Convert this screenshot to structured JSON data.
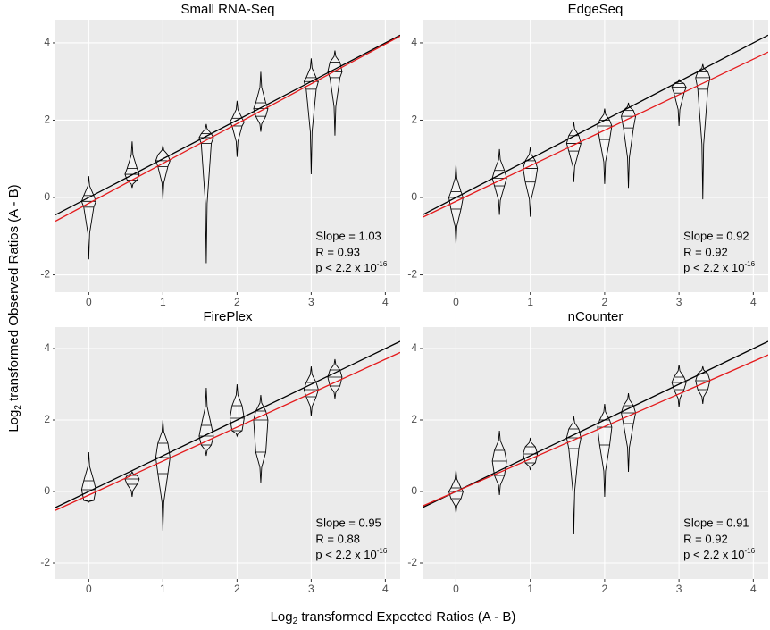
{
  "x_label": {
    "main": "Log",
    "sub": "2",
    "rest": " transformed Expected Ratios (A - B)"
  },
  "y_label": {
    "main": "Log",
    "sub": "2",
    "rest": " transformed Observed Ratios (A - B)"
  },
  "chart_data": [
    {
      "type": "violin",
      "title": "Small RNA-Seq",
      "xlim": [
        -0.45,
        4.2
      ],
      "ylim": [
        -2.45,
        4.6
      ],
      "xticks": [
        0,
        1,
        2,
        3,
        4
      ],
      "yticks": [
        -2,
        0,
        2,
        4
      ],
      "grid": true,
      "groups": [
        {
          "x": 0,
          "min": -1.6,
          "q1": -0.25,
          "median": -0.1,
          "q3": 0.05,
          "max": 0.55
        },
        {
          "x": 0.585,
          "min": 0.25,
          "q1": 0.45,
          "median": 0.6,
          "q3": 0.75,
          "max": 1.45
        },
        {
          "x": 1,
          "min": -0.05,
          "q1": 0.8,
          "median": 0.95,
          "q3": 1.1,
          "max": 1.35
        },
        {
          "x": 1.585,
          "min": -1.7,
          "q1": 1.4,
          "median": 1.55,
          "q3": 1.65,
          "max": 1.9
        },
        {
          "x": 2,
          "min": 1.05,
          "q1": 1.85,
          "median": 1.95,
          "q3": 2.05,
          "max": 2.5
        },
        {
          "x": 2.32,
          "min": 1.7,
          "q1": 2.1,
          "median": 2.3,
          "q3": 2.45,
          "max": 3.25
        },
        {
          "x": 3,
          "min": 0.6,
          "q1": 2.8,
          "median": 3.0,
          "q3": 3.1,
          "max": 3.6
        },
        {
          "x": 3.32,
          "min": 1.6,
          "q1": 3.1,
          "median": 3.25,
          "q3": 3.5,
          "max": 3.8
        }
      ],
      "lines": [
        {
          "color": "#000000",
          "slope": 1,
          "intercept": 0
        },
        {
          "color": "#e41a1c",
          "slope": 1.03,
          "intercept": -0.15
        }
      ],
      "annotations": {
        "slope": "Slope = 1.03",
        "r": "R = 0.93",
        "p": "p < 2.2 x 10",
        "p_exp": "-16"
      }
    },
    {
      "type": "violin",
      "title": "EdgeSeq",
      "xlim": [
        -0.45,
        4.2
      ],
      "ylim": [
        -2.45,
        4.6
      ],
      "xticks": [
        0,
        1,
        2,
        3,
        4
      ],
      "yticks": [
        -2,
        0,
        2,
        4
      ],
      "grid": true,
      "groups": [
        {
          "x": 0,
          "min": -1.2,
          "q1": -0.3,
          "median": 0,
          "q3": 0.15,
          "max": 0.85
        },
        {
          "x": 0.585,
          "min": -0.45,
          "q1": 0.3,
          "median": 0.5,
          "q3": 0.7,
          "max": 1.25
        },
        {
          "x": 1,
          "min": -0.5,
          "q1": 0.4,
          "median": 0.75,
          "q3": 0.95,
          "max": 1.3
        },
        {
          "x": 1.585,
          "min": 0.4,
          "q1": 1.2,
          "median": 1.4,
          "q3": 1.6,
          "max": 1.95
        },
        {
          "x": 2,
          "min": 0.35,
          "q1": 1.5,
          "median": 1.85,
          "q3": 2.0,
          "max": 2.3
        },
        {
          "x": 2.32,
          "min": 0.25,
          "q1": 1.8,
          "median": 2.1,
          "q3": 2.25,
          "max": 2.45
        },
        {
          "x": 3,
          "min": 1.85,
          "q1": 2.7,
          "median": 2.85,
          "q3": 2.95,
          "max": 3.05
        },
        {
          "x": 3.32,
          "min": -0.05,
          "q1": 2.8,
          "median": 3.1,
          "q3": 3.25,
          "max": 3.45
        }
      ],
      "lines": [
        {
          "color": "#000000",
          "slope": 1,
          "intercept": 0
        },
        {
          "color": "#e41a1c",
          "slope": 0.92,
          "intercept": -0.1
        }
      ],
      "annotations": {
        "slope": "Slope = 0.92",
        "r": "R = 0.92",
        "p": "p < 2.2 x 10",
        "p_exp": "-16"
      }
    },
    {
      "type": "violin",
      "title": "FirePlex",
      "xlim": [
        -0.45,
        4.2
      ],
      "ylim": [
        -2.45,
        4.6
      ],
      "xticks": [
        0,
        1,
        2,
        3,
        4
      ],
      "yticks": [
        -2,
        0,
        2,
        4
      ],
      "grid": true,
      "groups": [
        {
          "x": 0,
          "min": -0.3,
          "q1": -0.25,
          "median": 0.05,
          "q3": 0.3,
          "max": 1.1
        },
        {
          "x": 0.585,
          "min": -0.15,
          "q1": 0.2,
          "median": 0.35,
          "q3": 0.45,
          "max": 0.55
        },
        {
          "x": 1,
          "min": -1.1,
          "q1": 0.5,
          "median": 0.95,
          "q3": 1.35,
          "max": 2.0
        },
        {
          "x": 1.585,
          "min": 1.0,
          "q1": 1.3,
          "median": 1.55,
          "q3": 1.85,
          "max": 2.9
        },
        {
          "x": 2,
          "min": 1.55,
          "q1": 1.7,
          "median": 2.05,
          "q3": 2.4,
          "max": 3.0
        },
        {
          "x": 2.32,
          "min": 0.25,
          "q1": 1.1,
          "median": 2.0,
          "q3": 2.25,
          "max": 2.7
        },
        {
          "x": 3,
          "min": 2.1,
          "q1": 2.65,
          "median": 2.85,
          "q3": 3.05,
          "max": 3.5
        },
        {
          "x": 3.32,
          "min": 2.6,
          "q1": 2.95,
          "median": 3.2,
          "q3": 3.4,
          "max": 3.7
        }
      ],
      "lines": [
        {
          "color": "#000000",
          "slope": 1,
          "intercept": 0
        },
        {
          "color": "#e41a1c",
          "slope": 0.95,
          "intercept": -0.1
        }
      ],
      "annotations": {
        "slope": "Slope = 0.95",
        "r": "R = 0.88",
        "p": "p < 2.2 x 10",
        "p_exp": "-16"
      }
    },
    {
      "type": "violin",
      "title": "nCounter",
      "xlim": [
        -0.45,
        4.2
      ],
      "ylim": [
        -2.45,
        4.6
      ],
      "xticks": [
        0,
        1,
        2,
        3,
        4
      ],
      "yticks": [
        -2,
        0,
        2,
        4
      ],
      "grid": true,
      "groups": [
        {
          "x": 0,
          "min": -0.6,
          "q1": -0.2,
          "median": 0,
          "q3": 0.1,
          "max": 0.6
        },
        {
          "x": 0.585,
          "min": -0.1,
          "q1": 0.45,
          "median": 0.85,
          "q3": 1.15,
          "max": 1.7
        },
        {
          "x": 1,
          "min": 0.6,
          "q1": 0.8,
          "median": 1.05,
          "q3": 1.25,
          "max": 1.5
        },
        {
          "x": 1.585,
          "min": -1.2,
          "q1": 1.2,
          "median": 1.5,
          "q3": 1.75,
          "max": 2.1
        },
        {
          "x": 2,
          "min": -0.15,
          "q1": 1.3,
          "median": 1.8,
          "q3": 2.0,
          "max": 2.45
        },
        {
          "x": 2.32,
          "min": 0.55,
          "q1": 1.9,
          "median": 2.2,
          "q3": 2.4,
          "max": 2.75
        },
        {
          "x": 3,
          "min": 2.35,
          "q1": 2.85,
          "median": 3.05,
          "q3": 3.2,
          "max": 3.55
        },
        {
          "x": 3.32,
          "min": 2.45,
          "q1": 2.85,
          "median": 3.1,
          "q3": 3.3,
          "max": 3.5
        }
      ],
      "lines": [
        {
          "color": "#000000",
          "slope": 1,
          "intercept": 0
        },
        {
          "color": "#e41a1c",
          "slope": 0.91,
          "intercept": 0
        }
      ],
      "annotations": {
        "slope": "Slope = 0.91",
        "r": "R = 0.92",
        "p": "p < 2.2 x 10",
        "p_exp": "-16"
      }
    }
  ]
}
